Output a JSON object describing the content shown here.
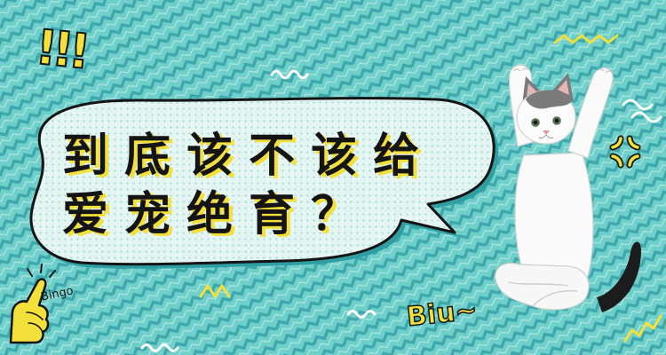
{
  "bubble": {
    "line1": "到底该不该给",
    "line2": "爱宠绝育？"
  },
  "doodles": {
    "exclaim": "!!!",
    "bingo": "Bingo",
    "biu": "Biu~"
  },
  "icons": {
    "hand": "pointing-hand-icon",
    "anger": "anger-mark-icon",
    "cat": "cat-illustration"
  },
  "colors": {
    "bg": "#6fcfca",
    "zigzag": "#3ea8ad",
    "zigzag_light": "#a7e3dd",
    "yellow": "#f4e03a",
    "ink": "#141414",
    "bubble": "#e4f5f2",
    "bubble_dots": "#a3d9d4",
    "bubble_shadow": "#2f9ea2",
    "white": "#ffffff",
    "cat_tail": "#1c1c1c",
    "cat_patch": "#7b7b7b"
  }
}
